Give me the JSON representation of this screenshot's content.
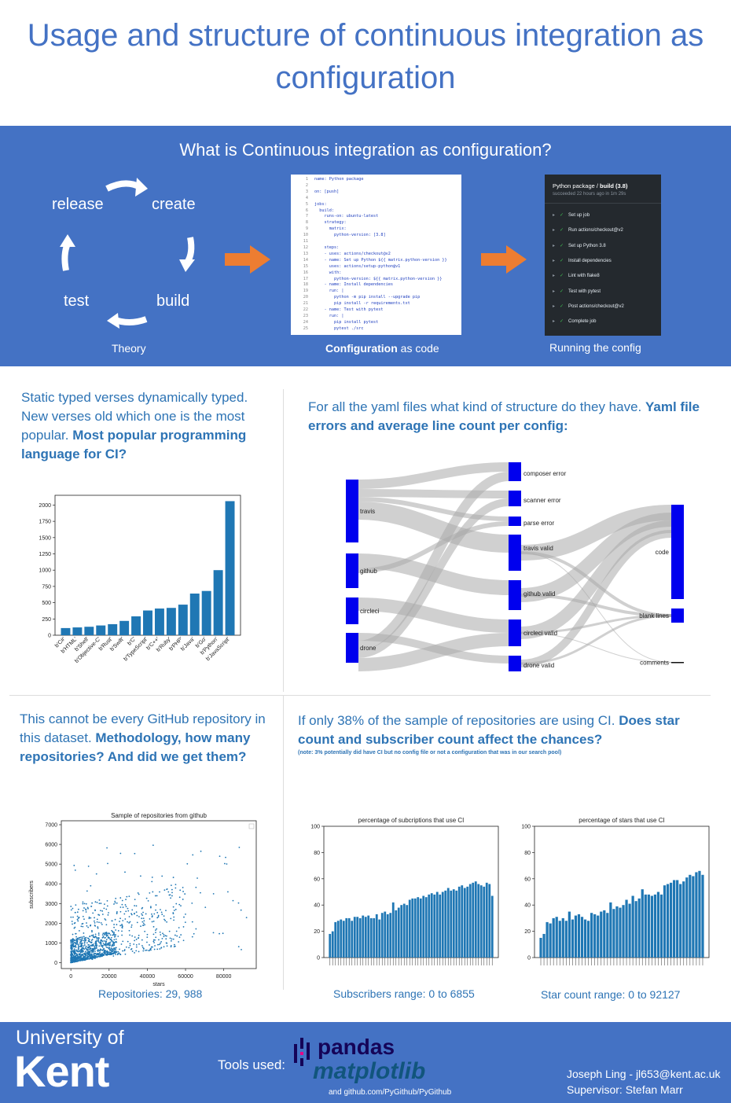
{
  "poster": {
    "title": "Usage and structure of continuous integration as configuration"
  },
  "intro": {
    "heading": "What is Continuous integration as configuration?",
    "cycle": [
      "release",
      "create",
      "test",
      "build"
    ],
    "theory_label": "Theory",
    "config_label_bold": "Configuration",
    "config_label_rest": " as code",
    "running_label": "Running the config",
    "code_lines": [
      "name: Python package",
      "",
      "on: [push]",
      "",
      "jobs:",
      "  build:",
      "    runs-on: ubuntu-latest",
      "    strategy:",
      "      matrix:",
      "        python-version: [3.8]",
      "",
      "    steps:",
      "    - uses: actions/checkout@v2",
      "    - name: Set up Python ${{ matrix.python-version }}",
      "      uses: actions/setup-python@v1",
      "      with:",
      "        python-version: ${{ matrix.python-version }}",
      "    - name: Install dependencies",
      "      run: |",
      "        python -m pip install --upgrade pip",
      "        pip install -r requirements.txt",
      "    - name: Test with pytest",
      "      run: |",
      "        pip install pytest",
      "        pytest ./src"
    ],
    "run_title_a": "Python package / ",
    "run_title_b": "build (3.8)",
    "run_subtitle": "succeeded 22 hours ago in 1m 29s",
    "run_steps": [
      "Set up job",
      "Run actions/checkout@v2",
      "Set up Python 3.8",
      "Install dependencies",
      "Lint with flake8",
      "Test with pytest",
      "Post actions/checkout@v2",
      "Complete job"
    ]
  },
  "section_lang": {
    "question_plain": "Static typed verses dynamically typed. New verses old which one is the most popular. ",
    "question_bold": "Most popular programming language for CI?"
  },
  "section_yaml": {
    "question_plain": "For all the yaml files what kind of structure do they have. ",
    "question_bold": "Yaml file errors and average line count per config:",
    "sources": [
      "travis",
      "github",
      "circleci",
      "drone"
    ],
    "middle": [
      "composer error",
      "scanner error",
      "parse error",
      "travis valid",
      "github valid",
      "circleci valid",
      "drone valid"
    ],
    "targets": [
      "code",
      "blank lines",
      "comments"
    ]
  },
  "section_method": {
    "question_plain": "This cannot be every GitHub repository in this dataset. ",
    "question_bold": "Methodology, how many repositories? And did we get them?",
    "caption": "Repositories: 29, 988"
  },
  "section_stars": {
    "question_plain": "If only 38% of the sample of repositories are using CI. ",
    "question_bold": "Does star count and subscriber count affect the chances?",
    "note": "(note: 3% potentially did have CI but no config file or not a configuration that was in our search pool)",
    "sub_caption": "Subscribers range: 0 to 6855",
    "star_caption": "Star count range: 0 to 92127"
  },
  "footer": {
    "uni_line1": "University of",
    "uni_line2": "Kent",
    "tools_label": "Tools used:",
    "pandas": "pandas",
    "matplotlib": "matplotlib",
    "pygithub": "and github.com/PyGithub/PyGithub",
    "author": "Joseph Ling - jl653@kent.ac.uk",
    "supervisor": "Supervisor: Stefan Marr"
  },
  "colors": {
    "accent": "#4472c4",
    "bar": "#1f77b4",
    "orange": "#ed7d31",
    "sankey_node": "#0000ee"
  },
  "chart_data": [
    {
      "type": "bar",
      "title": "",
      "categories": [
        "b'C#'",
        "b'HTML'",
        "b'Shell'",
        "b'Objective-C'",
        "b'Rust'",
        "b'Swift'",
        "b'C'",
        "b'TypeScript'",
        "b'C++'",
        "b'Ruby'",
        "b'PHP'",
        "b'Java'",
        "b'Go'",
        "b'Python'",
        "b'JavaScript'"
      ],
      "values": [
        110,
        120,
        130,
        150,
        170,
        220,
        290,
        380,
        410,
        420,
        470,
        640,
        680,
        1000,
        2060
      ],
      "ylim": [
        0,
        2150
      ],
      "yticks": [
        0,
        250,
        500,
        750,
        1000,
        1250,
        1500,
        1750,
        2000
      ]
    },
    {
      "type": "scatter",
      "title": "Sample of repositories from github",
      "xlabel": "stars",
      "ylabel": "subscribers",
      "xlim": [
        -5000,
        97000
      ],
      "ylim": [
        -300,
        7200
      ],
      "xticks": [
        0,
        20000,
        40000,
        60000,
        80000
      ],
      "yticks": [
        0,
        1000,
        2000,
        3000,
        4000,
        5000,
        6000,
        7000
      ]
    },
    {
      "type": "bar",
      "title": "percentage of subcriptions that use CI",
      "ylim": [
        0,
        100
      ],
      "yticks": [
        0,
        20,
        40,
        60,
        80,
        100
      ],
      "values": [
        18,
        20,
        27,
        28,
        29,
        28,
        30,
        30,
        28,
        31,
        31,
        30,
        32,
        31,
        32,
        30,
        30,
        33,
        29,
        34,
        35,
        33,
        34,
        42,
        36,
        38,
        40,
        41,
        40,
        44,
        45,
        45,
        46,
        45,
        47,
        46,
        48,
        49,
        48,
        50,
        48,
        50,
        51,
        53,
        51,
        52,
        51,
        54,
        55,
        53,
        54,
        56,
        57,
        58,
        56,
        55,
        54,
        57,
        56,
        47
      ]
    },
    {
      "type": "bar",
      "title": "percentage of stars that use CI",
      "ylim": [
        0,
        100
      ],
      "yticks": [
        0,
        20,
        40,
        60,
        80,
        100
      ],
      "values": [
        15,
        18,
        27,
        26,
        30,
        31,
        28,
        30,
        28,
        35,
        29,
        32,
        33,
        31,
        29,
        28,
        34,
        33,
        32,
        35,
        36,
        34,
        42,
        37,
        39,
        38,
        40,
        44,
        41,
        47,
        43,
        45,
        52,
        48,
        48,
        47,
        48,
        50,
        48,
        55,
        56,
        57,
        59,
        59,
        56,
        58,
        61,
        63,
        62,
        65,
        66,
        63
      ]
    }
  ]
}
